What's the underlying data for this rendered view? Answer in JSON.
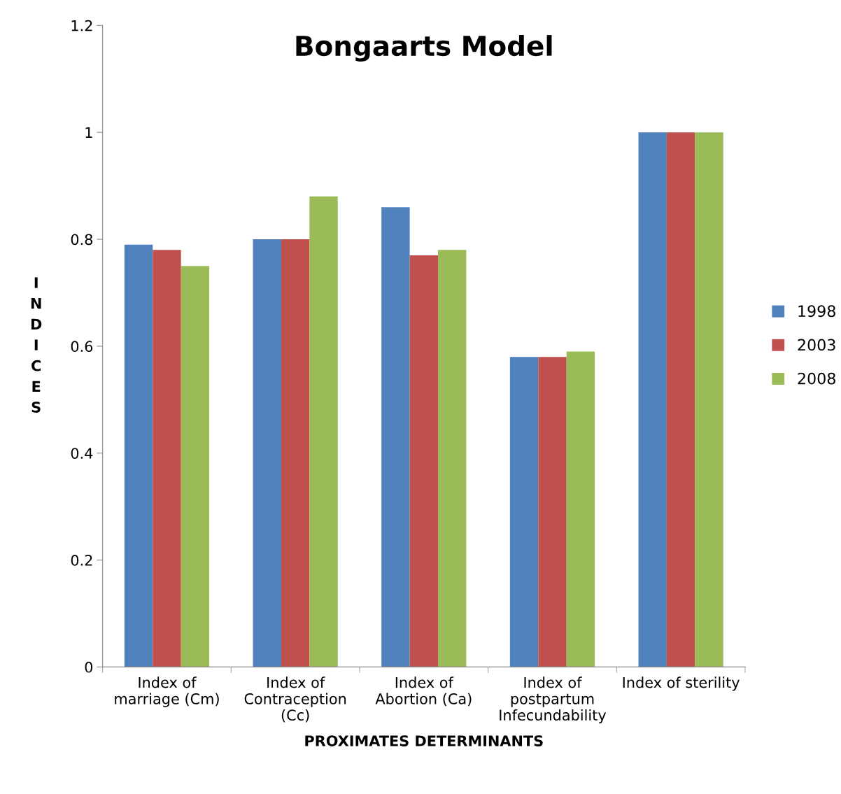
{
  "chart_data": {
    "type": "bar",
    "title": "Bongaarts Model",
    "xlabel": "PROXIMATES DETERMINANTS",
    "ylabel": "INDICES",
    "categories": [
      "Index of\nmarriage (Cm)",
      "Index of\nContraception\n(Cc)",
      "Index of\nAbortion (Ca)",
      "Index of\npostpartum\nInfecundability",
      "Index of sterility"
    ],
    "series": [
      {
        "name": "1998",
        "color": "#4f81bd",
        "values": [
          0.79,
          0.8,
          0.86,
          0.58,
          1.0
        ]
      },
      {
        "name": "2003",
        "color": "#c0504d",
        "values": [
          0.78,
          0.8,
          0.77,
          0.58,
          1.0
        ]
      },
      {
        "name": "2008",
        "color": "#9bbb59",
        "values": [
          0.75,
          0.88,
          0.78,
          0.59,
          1.0
        ]
      }
    ],
    "ylim": [
      0,
      1.2
    ],
    "yticks": [
      0,
      0.2,
      0.4,
      0.6,
      0.8,
      1,
      1.2
    ],
    "grid": false,
    "legend": "right"
  }
}
